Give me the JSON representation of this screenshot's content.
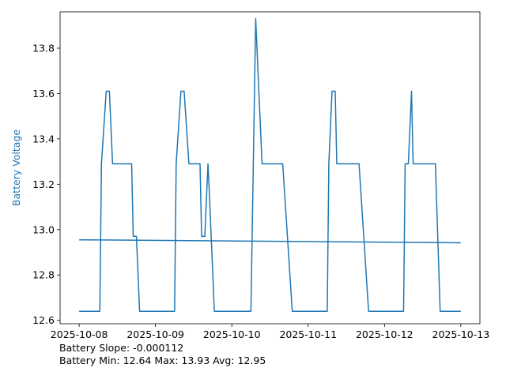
{
  "chart_data": {
    "type": "line",
    "title": "",
    "xlabel": "",
    "ylabel": "Battery Voltage",
    "ylabel_color": "#1f77b4",
    "ylim": [
      12.585,
      13.96
    ],
    "xlim": [
      "2025-10-07T18:00",
      "2025-10-13T06:00"
    ],
    "x_ticks": [
      "2025-10-08",
      "2025-10-09",
      "2025-10-10",
      "2025-10-11",
      "2025-10-12",
      "2025-10-13"
    ],
    "y_ticks": [
      "12.6",
      "12.8",
      "13.0",
      "13.2",
      "13.4",
      "13.6",
      "13.8"
    ],
    "grid": false,
    "series": [
      {
        "color": "#1f77b4",
        "x": [
          "2025-10-08T00:00",
          "2025-10-08T06:30",
          "2025-10-08T07:00",
          "2025-10-08T08:30",
          "2025-10-08T09:30",
          "2025-10-08T10:30",
          "2025-10-08T16:30",
          "2025-10-08T17:00",
          "2025-10-08T18:00",
          "2025-10-08T19:00",
          "2025-10-09T06:00",
          "2025-10-09T06:30",
          "2025-10-09T08:00",
          "2025-10-09T09:00",
          "2025-10-09T10:30",
          "2025-10-09T14:00",
          "2025-10-09T14:30",
          "2025-10-09T15:30",
          "2025-10-09T16:30",
          "2025-10-09T17:00",
          "2025-10-09T18:30",
          "2025-10-09T19:00",
          "2025-10-10T06:00",
          "2025-10-10T07:30",
          "2025-10-10T09:30",
          "2025-10-10T16:00",
          "2025-10-10T19:00",
          "2025-10-11T06:00",
          "2025-10-11T06:30",
          "2025-10-11T07:30",
          "2025-10-11T08:30",
          "2025-10-11T09:00",
          "2025-10-11T16:00",
          "2025-10-11T19:00",
          "2025-10-12T06:00",
          "2025-10-12T06:30",
          "2025-10-12T07:30",
          "2025-10-12T08:30",
          "2025-10-12T09:00",
          "2025-10-12T16:00",
          "2025-10-12T17:30",
          "2025-10-12T18:00",
          "2025-10-12T23:59"
        ],
        "values": [
          12.64,
          12.64,
          13.29,
          13.61,
          13.61,
          13.29,
          13.29,
          12.97,
          12.97,
          12.64,
          12.64,
          13.29,
          13.61,
          13.61,
          13.29,
          13.29,
          12.97,
          12.97,
          13.29,
          13.14,
          12.64,
          12.64,
          12.64,
          13.93,
          13.29,
          13.29,
          12.64,
          12.64,
          13.29,
          13.61,
          13.61,
          13.29,
          13.29,
          12.64,
          12.64,
          13.29,
          13.29,
          13.61,
          13.29,
          13.29,
          12.64,
          12.64,
          12.64
        ]
      },
      {
        "color": "#1f77b4",
        "x": [
          "2025-10-08T00:00",
          "2025-10-12T23:59"
        ],
        "values": [
          12.955,
          12.942
        ]
      }
    ]
  },
  "stats": {
    "slope_line": "Battery Slope: -0.000112",
    "minmax_line": "Battery Min: 12.64 Max: 13.93 Avg: 12.95"
  }
}
